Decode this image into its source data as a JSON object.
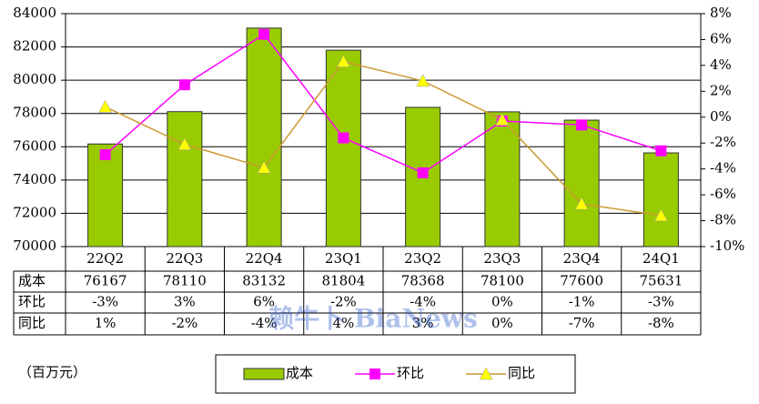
{
  "chart_data": {
    "type": "bar",
    "categories": [
      "22Q2",
      "22Q3",
      "22Q4",
      "23Q1",
      "23Q2",
      "23Q3",
      "23Q4",
      "24Q1"
    ],
    "series": [
      {
        "name": "成本",
        "type": "bar",
        "color": "#99cc00",
        "axis": "y",
        "values": [
          76167,
          78110,
          83132,
          81804,
          78368,
          78100,
          77600,
          75631
        ]
      },
      {
        "name": "环比",
        "type": "line",
        "marker": "square",
        "color": "#ff00ff",
        "marker_color": "#ff00ff",
        "axis": "y2",
        "values": [
          -2.9,
          2.5,
          6.4,
          -1.6,
          -4.3,
          -0.3,
          -0.6,
          -2.6
        ],
        "value_labels": [
          "-3%",
          "3%",
          "6%",
          "-2%",
          "-4%",
          "0%",
          "-1%",
          "-3%"
        ]
      },
      {
        "name": "同比",
        "type": "line",
        "marker": "triangle",
        "color": "#cc9933",
        "marker_color": "#ffff00",
        "axis": "y2",
        "values": [
          0.8,
          -2.1,
          -3.9,
          4.3,
          2.8,
          -0.2,
          -6.7,
          -7.6
        ],
        "value_labels": [
          "1%",
          "-2%",
          "-4%",
          "4%",
          "3%",
          "0%",
          "-7%",
          "-8%"
        ]
      }
    ],
    "ylim": [
      70000,
      84000
    ],
    "yticks": [
      70000,
      72000,
      74000,
      76000,
      78000,
      80000,
      82000,
      84000
    ],
    "y2lim": [
      -10,
      8
    ],
    "y2ticks": [
      {
        "value": -10,
        "label": "-10%"
      },
      {
        "value": -8,
        "label": "-8%"
      },
      {
        "value": -6,
        "label": "-6%"
      },
      {
        "value": -4,
        "label": "-4%"
      },
      {
        "value": -2,
        "label": "-2%"
      },
      {
        "value": 0,
        "label": "0%"
      },
      {
        "value": 2,
        "label": "2%"
      },
      {
        "value": 4,
        "label": "4%"
      },
      {
        "value": 6,
        "label": "6%"
      },
      {
        "value": 8,
        "label": "8%"
      }
    ],
    "grid": true,
    "unit_note": "（百万元）",
    "watermark": "赖牛卜 BiaNews"
  }
}
